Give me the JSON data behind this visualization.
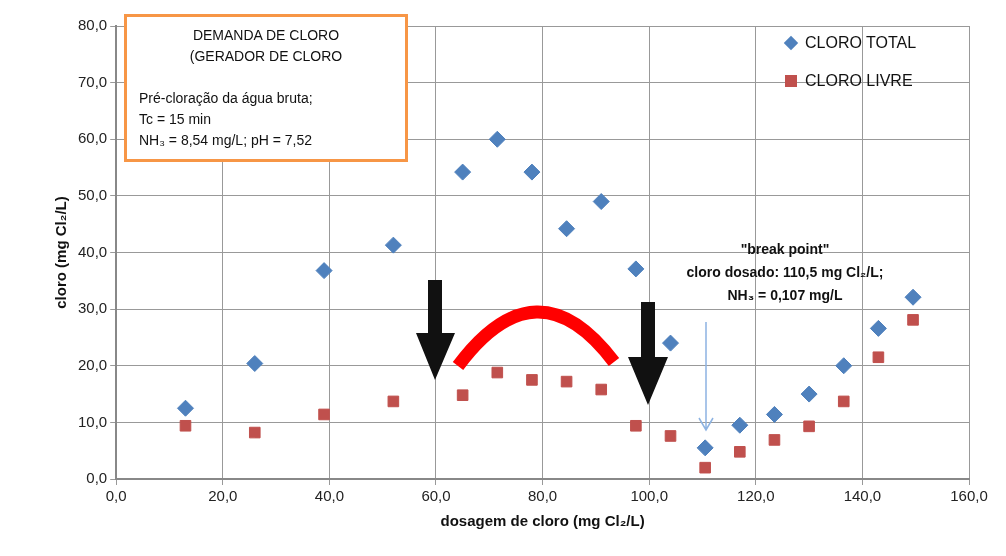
{
  "chart_data": {
    "type": "scatter",
    "xlabel": "dosagem de cloro (mg Cl₂/L)",
    "ylabel": "cloro (mg Cl₂/L)",
    "x": [
      13,
      26,
      39,
      52,
      65,
      71.5,
      78,
      84.5,
      91,
      97.5,
      104,
      110.5,
      117,
      123.5,
      130,
      136.5,
      143,
      149.5
    ],
    "series": [
      {
        "name": "CLORO TOTAL",
        "color": "#4f81bd",
        "marker": "diamond",
        "values": [
          12.5,
          20.4,
          36.8,
          41.3,
          54.2,
          60.0,
          54.2,
          44.2,
          49.0,
          37.1,
          24.0,
          5.5,
          9.5,
          11.4,
          15.0,
          20.0,
          26.6,
          32.1
        ]
      },
      {
        "name": "CLORO LIVRE",
        "color": "#c0504d",
        "marker": "square",
        "values": [
          9.4,
          8.2,
          11.4,
          13.7,
          14.8,
          18.8,
          17.5,
          17.2,
          15.8,
          9.4,
          7.6,
          2.0,
          4.8,
          6.9,
          9.3,
          13.7,
          21.5,
          28.1
        ]
      }
    ],
    "xlim": [
      0,
      160
    ],
    "xticks": [
      {
        "value": 0,
        "label": "0,0"
      },
      {
        "value": 20,
        "label": "20,0"
      },
      {
        "value": 40,
        "label": "40,0"
      },
      {
        "value": 60,
        "label": "60,0"
      },
      {
        "value": 80,
        "label": "80,0"
      },
      {
        "value": 100,
        "label": "100,0"
      },
      {
        "value": 120,
        "label": "120,0"
      },
      {
        "value": 140,
        "label": "140,0"
      },
      {
        "value": 160,
        "label": "160,0"
      }
    ],
    "ylim": [
      0,
      80
    ],
    "yticks": [
      {
        "value": 0,
        "label": "0,0"
      },
      {
        "value": 10,
        "label": "10,0"
      },
      {
        "value": 20,
        "label": "20,0"
      },
      {
        "value": 30,
        "label": "30,0"
      },
      {
        "value": 40,
        "label": "40,0"
      },
      {
        "value": 50,
        "label": "50,0"
      },
      {
        "value": 60,
        "label": "60,0"
      },
      {
        "value": 70,
        "label": "70,0"
      },
      {
        "value": 80,
        "label": "80,0"
      }
    ],
    "grid": true,
    "legend": "top right",
    "annotations": [
      "DEMANDA DE CLORO\n(GERADOR DE CLORO",
      "Pré-cloração da água bruta;\nTc = 15 min\nNH₃ = 8,54 mg/L; pH = 7,52",
      "\"break point\"\ncloro dosado: 110,5  mg Cl₂/L;\nNH₃ = 0,107  mg/L"
    ]
  }
}
